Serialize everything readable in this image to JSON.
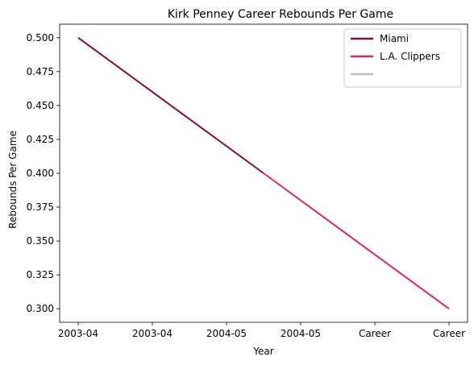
{
  "chart_data": {
    "type": "line",
    "title": "Kirk Penney Career Rebounds Per Game",
    "xlabel": "Year",
    "ylabel": "Rebounds Per Game",
    "x_tick_labels": [
      "2003-04",
      "2003-04",
      "2004-05",
      "2004-05",
      "Career",
      "Career"
    ],
    "x_range": [
      -0.25,
      5.25
    ],
    "ylim": [
      0.29,
      0.51
    ],
    "y_ticks": [
      0.3,
      0.325,
      0.35,
      0.375,
      0.4,
      0.425,
      0.45,
      0.475,
      0.5
    ],
    "y_tick_labels": [
      "0.300",
      "0.325",
      "0.350",
      "0.375",
      "0.400",
      "0.425",
      "0.450",
      "0.475",
      "0.500"
    ],
    "grid": false,
    "legend_position": "upper right",
    "series": [
      {
        "name": "Miami",
        "color": "#8b0a3a",
        "points": [
          {
            "x": 0,
            "y": 0.5
          },
          {
            "x": 2.5,
            "y": 0.4
          }
        ]
      },
      {
        "name": "L.A. Clippers",
        "color": "#e8245a",
        "points": [
          {
            "x": 2.5,
            "y": 0.4
          },
          {
            "x": 5,
            "y": 0.3
          }
        ]
      },
      {
        "name": "",
        "color": "#bfbfbf",
        "points": []
      }
    ]
  }
}
